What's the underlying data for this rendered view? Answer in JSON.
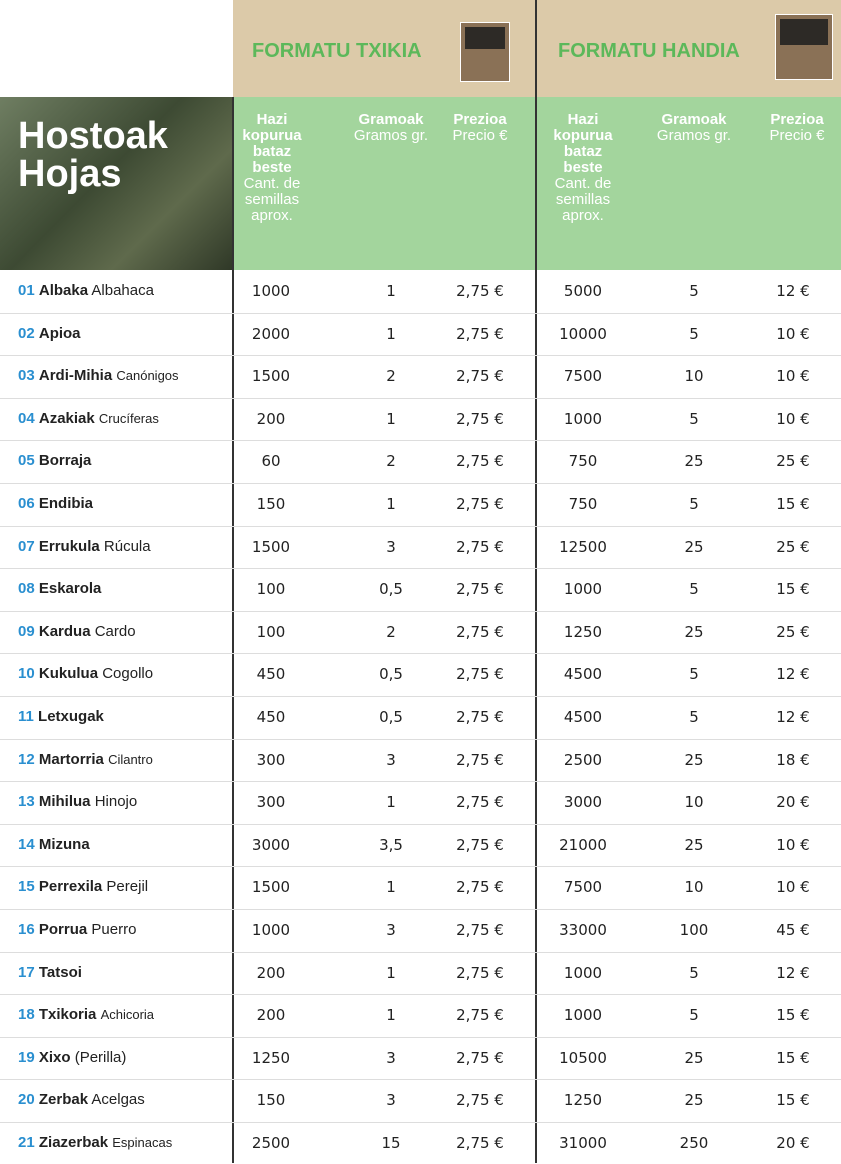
{
  "header": {
    "formats": [
      "FORMATU TXIKIA",
      "FORMATU HANDIA"
    ],
    "section": [
      "Hostoak",
      "Hojas"
    ],
    "columns": [
      {
        "bold": "Hazi kopurua bataz beste",
        "sub": "Cant. de semillas aprox."
      },
      {
        "bold": "Gramoak",
        "sub": "Gramos gr."
      },
      {
        "bold": "Prezioa",
        "sub": "Precio €"
      }
    ]
  },
  "table": {
    "rows": [
      [
        "01",
        "Albaka",
        "Albahaca",
        "1000",
        "1",
        "2,75 €",
        "5000",
        "5",
        "12 €"
      ],
      [
        "02",
        "Apioa",
        "",
        "2000",
        "1",
        "2,75 €",
        "10000",
        "5",
        "10 €"
      ],
      [
        "03",
        "Ardi-Mihia",
        "Canónigos",
        "1500",
        "2",
        "2,75 €",
        "7500",
        "10",
        "10 €"
      ],
      [
        "04",
        "Azakiak",
        "Crucíferas",
        "200",
        "1",
        "2,75 €",
        "1000",
        "5",
        "10 €"
      ],
      [
        "05",
        "Borraja",
        "",
        "60",
        "2",
        "2,75 €",
        "750",
        "25",
        "25 €"
      ],
      [
        "06",
        "Endibia",
        "",
        "150",
        "1",
        "2,75 €",
        "750",
        "5",
        "15 €"
      ],
      [
        "07",
        "Errukula",
        "Rúcula",
        "1500",
        "3",
        "2,75 €",
        "12500",
        "25",
        "25 €"
      ],
      [
        "08",
        "Eskarola",
        "",
        "100",
        "0,5",
        "2,75 €",
        "1000",
        "5",
        "15 €"
      ],
      [
        "09",
        "Kardua",
        "Cardo",
        "100",
        "2",
        "2,75 €",
        "1250",
        "25",
        "25 €"
      ],
      [
        "10",
        "Kukulua",
        "Cogollo",
        "450",
        "0,5",
        "2,75 €",
        "4500",
        "5",
        "12 €"
      ],
      [
        "11",
        "Letxugak",
        "",
        "450",
        "0,5",
        "2,75 €",
        "4500",
        "5",
        "12 €"
      ],
      [
        "12",
        "Martorria",
        "Cilantro",
        "300",
        "3",
        "2,75 €",
        "2500",
        "25",
        "18 €"
      ],
      [
        "13",
        "Mihilua",
        "Hinojo",
        "300",
        "1",
        "2,75 €",
        "3000",
        "10",
        "20 €"
      ],
      [
        "14",
        "Mizuna",
        "",
        "3000",
        "3,5",
        "2,75 €",
        "21000",
        "25",
        "10 €"
      ],
      [
        "15",
        "Perrexila",
        "Perejil",
        "1500",
        "1",
        "2,75 €",
        "7500",
        "10",
        "10 €"
      ],
      [
        "16",
        "Porrua",
        "Puerro",
        "1000",
        "3",
        "2,75 €",
        "33000",
        "100",
        "45 €"
      ],
      [
        "17",
        "Tatsoi",
        "",
        "200",
        "1",
        "2,75 €",
        "1000",
        "5",
        "12 €"
      ],
      [
        "18",
        "Txikoria",
        "Achicoria",
        "200",
        "1",
        "2,75 €",
        "1000",
        "5",
        "15 €"
      ],
      [
        "19",
        "Xixo",
        "(Perilla)",
        "1250",
        "3",
        "2,75 €",
        "10500",
        "25",
        "15 €"
      ],
      [
        "20",
        "Zerbak",
        "Acelgas",
        "150",
        "3",
        "2,75 €",
        "1250",
        "25",
        "15 €"
      ],
      [
        "21",
        "Ziazerbak",
        "Espinacas",
        "2500",
        "15",
        "2,75 €",
        "31000",
        "250",
        "20 €"
      ]
    ]
  }
}
